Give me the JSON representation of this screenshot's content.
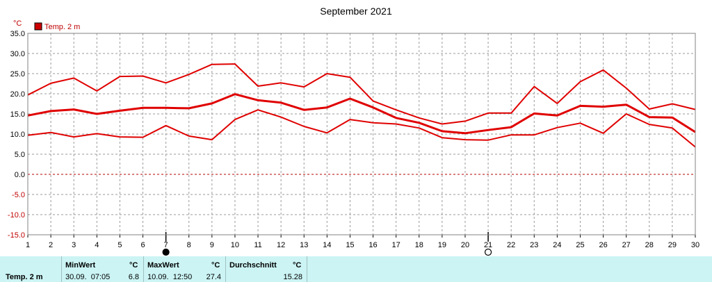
{
  "chart_data": {
    "type": "line",
    "title": "September 2021",
    "ylabel": "°C",
    "legend": {
      "label": "Temp. 2 m",
      "color": "#cc0000",
      "position": "top-left"
    },
    "grid": true,
    "ylim": [
      -15,
      35
    ],
    "yticks": [
      "35.0",
      "30.0",
      "25.0",
      "20.0",
      "15.0",
      "10.0",
      "5.0",
      "0.0",
      "-5.0",
      "-10.0",
      "-15.0"
    ],
    "x": [
      1,
      2,
      3,
      4,
      5,
      6,
      7,
      8,
      9,
      10,
      11,
      12,
      13,
      14,
      15,
      16,
      17,
      18,
      19,
      20,
      21,
      22,
      23,
      24,
      25,
      26,
      27,
      28,
      29,
      30
    ],
    "xlabels": [
      "1",
      "2",
      "3",
      "4",
      "5",
      "6",
      "7",
      "8",
      "9",
      "10",
      "11",
      "12",
      "13",
      "14",
      "15",
      "16",
      "17",
      "18",
      "19",
      "20",
      "21",
      "22",
      "23",
      "24",
      "25",
      "26",
      "27",
      "28",
      "29",
      "30"
    ],
    "series": [
      {
        "role": "max",
        "color": "#e00000",
        "width": 2,
        "values": [
          19.7,
          22.6,
          23.9,
          20.7,
          24.3,
          24.4,
          22.7,
          24.8,
          27.3,
          27.4,
          21.9,
          22.7,
          21.7,
          25.0,
          24.1,
          18.2,
          16.0,
          14.0,
          12.5,
          13.2,
          15.2,
          15.2,
          21.8,
          17.6,
          23.0,
          25.9,
          21.4,
          16.2,
          17.5,
          16.1
        ]
      },
      {
        "role": "mean",
        "color": "#e00000",
        "width": 3,
        "values": [
          14.6,
          15.7,
          16.1,
          15.0,
          15.8,
          16.5,
          16.5,
          16.4,
          17.6,
          19.9,
          18.4,
          17.8,
          16.0,
          16.6,
          18.8,
          16.6,
          14.0,
          12.8,
          10.7,
          10.2,
          11.0,
          11.7,
          15.1,
          14.6,
          17.0,
          16.8,
          17.3,
          14.2,
          14.1,
          10.5
        ]
      },
      {
        "role": "min",
        "color": "#e00000",
        "width": 2,
        "values": [
          9.7,
          10.4,
          9.3,
          10.1,
          9.3,
          9.2,
          12.1,
          9.5,
          8.6,
          13.6,
          16.0,
          14.2,
          11.9,
          10.3,
          13.6,
          12.8,
          12.5,
          11.5,
          9.1,
          8.6,
          8.5,
          9.8,
          9.8,
          11.6,
          12.7,
          10.2,
          15.0,
          12.4,
          11.5,
          6.8
        ]
      }
    ],
    "moon_markers": [
      {
        "day": 7,
        "phase": "full-moon"
      },
      {
        "day": 21,
        "phase": "new-moon"
      }
    ]
  },
  "stats": {
    "series_label": "Temp. 2 m",
    "min": {
      "header": "MinWert",
      "unit": "°C",
      "datetime": "30.09.  07:05",
      "value": "6.8"
    },
    "max": {
      "header": "MaxWert",
      "unit": "°C",
      "datetime": "10.09.  12:50",
      "value": "27.4"
    },
    "avg": {
      "header": "Durchschnitt",
      "unit": "°C",
      "value": "15.28"
    }
  }
}
